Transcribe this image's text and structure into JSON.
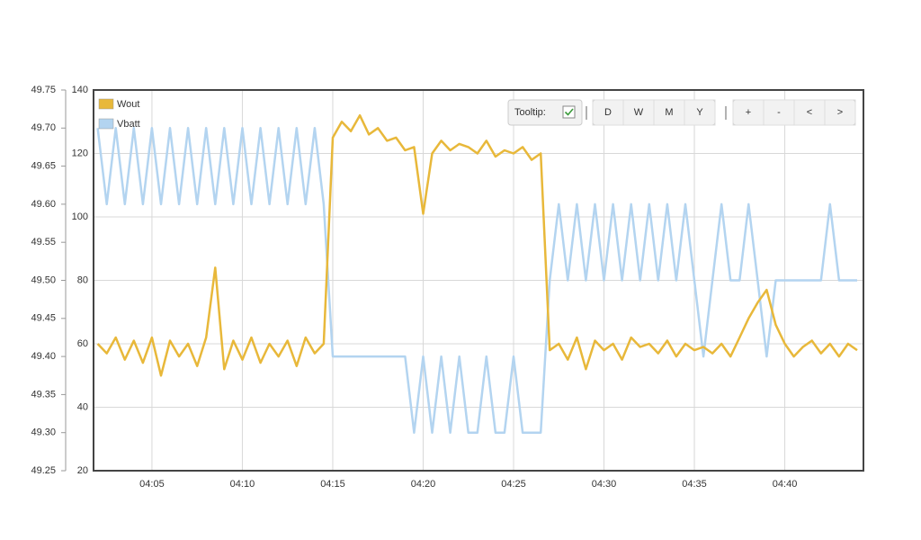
{
  "chart_data": {
    "type": "line",
    "x": [
      2,
      2.5,
      3,
      3.5,
      4,
      4.5,
      5,
      5.5,
      6,
      6.5,
      7,
      7.5,
      8,
      8.5,
      9,
      9.5,
      10,
      10.5,
      11,
      11.5,
      12,
      12.5,
      13,
      13.5,
      14,
      14.5,
      15,
      15.5,
      16,
      16.5,
      17,
      17.5,
      18,
      18.5,
      19,
      19.5,
      20,
      20.5,
      21,
      21.5,
      22,
      22.5,
      23,
      23.5,
      24,
      24.5,
      25,
      25.5,
      26,
      26.5,
      27,
      27.5,
      28,
      28.5,
      29,
      29.5,
      30,
      30.5,
      31,
      31.5,
      32,
      32.5,
      33,
      33.5,
      34,
      34.5,
      35,
      35.5,
      36,
      36.5,
      37,
      37.5,
      38,
      38.5,
      39,
      39.5,
      40,
      40.5,
      41,
      41.5,
      42,
      42.5,
      43,
      43.5,
      44
    ],
    "xlim": [
      1.77,
      44.35
    ],
    "xticks": [
      {
        "value": 5,
        "label": "04:05"
      },
      {
        "value": 10,
        "label": "04:10"
      },
      {
        "value": 15,
        "label": "04:15"
      },
      {
        "value": 20,
        "label": "04:20"
      },
      {
        "value": 25,
        "label": "04:25"
      },
      {
        "value": 30,
        "label": "04:30"
      },
      {
        "value": 35,
        "label": "04:35"
      },
      {
        "value": 40,
        "label": "04:40"
      }
    ],
    "ylim": [
      20,
      140
    ],
    "yticks": [
      20,
      40,
      60,
      80,
      100,
      120,
      140
    ],
    "y2lim": [
      49.25,
      49.75
    ],
    "y2ticks": [
      49.25,
      {
        "value": 49.3,
        "label": "49.30"
      },
      49.35,
      {
        "value": 49.4,
        "label": "49.40"
      },
      49.45,
      {
        "value": 49.5,
        "label": "49.50"
      },
      49.55,
      {
        "value": 49.6,
        "label": "49.60"
      },
      49.65,
      {
        "value": 49.7,
        "label": "49.70"
      },
      49.75
    ],
    "grid": true,
    "legend": "top-left",
    "series": [
      {
        "name": "Wout",
        "color": "#e8b83a",
        "values": [
          60,
          57,
          62,
          55,
          61,
          54,
          62,
          50,
          61,
          56,
          60,
          53,
          62,
          84,
          52,
          61,
          55,
          62,
          54,
          60,
          56,
          61,
          53,
          62,
          57,
          60,
          125,
          130,
          127,
          132,
          126,
          128,
          124,
          125,
          121,
          122,
          101,
          120,
          124,
          121,
          123,
          122,
          120,
          124,
          119,
          121,
          120,
          122,
          118,
          120,
          58,
          60,
          55,
          62,
          52,
          61,
          58,
          60,
          55,
          62,
          59,
          60,
          57,
          61,
          56,
          60,
          58,
          59,
          57,
          60,
          56,
          62,
          68,
          73,
          77,
          66,
          60,
          56,
          59,
          61,
          57,
          60,
          56,
          60,
          58
        ]
      },
      {
        "name": "Vbatt",
        "color": "#b3d4f0",
        "axis": "y2",
        "values": [
          49.7,
          49.6,
          49.7,
          49.6,
          49.7,
          49.6,
          49.7,
          49.6,
          49.7,
          49.6,
          49.7,
          49.6,
          49.7,
          49.6,
          49.7,
          49.6,
          49.7,
          49.6,
          49.7,
          49.6,
          49.7,
          49.6,
          49.7,
          49.6,
          49.7,
          49.6,
          49.4,
          49.4,
          49.4,
          49.4,
          49.4,
          49.4,
          49.4,
          49.4,
          49.4,
          49.3,
          49.4,
          49.3,
          49.4,
          49.3,
          49.4,
          49.3,
          49.3,
          49.4,
          49.3,
          49.3,
          49.4,
          49.3,
          49.3,
          49.3,
          49.5,
          49.6,
          49.5,
          49.6,
          49.5,
          49.6,
          49.5,
          49.6,
          49.5,
          49.6,
          49.5,
          49.6,
          49.5,
          49.6,
          49.5,
          49.6,
          49.5,
          49.4,
          49.5,
          49.6,
          49.5,
          49.5,
          49.6,
          49.5,
          49.4,
          49.5,
          49.5,
          49.5,
          49.5,
          49.5,
          49.5,
          49.6,
          49.5,
          49.5,
          49.5
        ]
      }
    ],
    "toolbar": {
      "tooltip": "Tooltip:",
      "ranges": [
        "D",
        "W",
        "M",
        "Y"
      ],
      "nav": [
        "+",
        "-",
        "<",
        ">"
      ]
    }
  }
}
